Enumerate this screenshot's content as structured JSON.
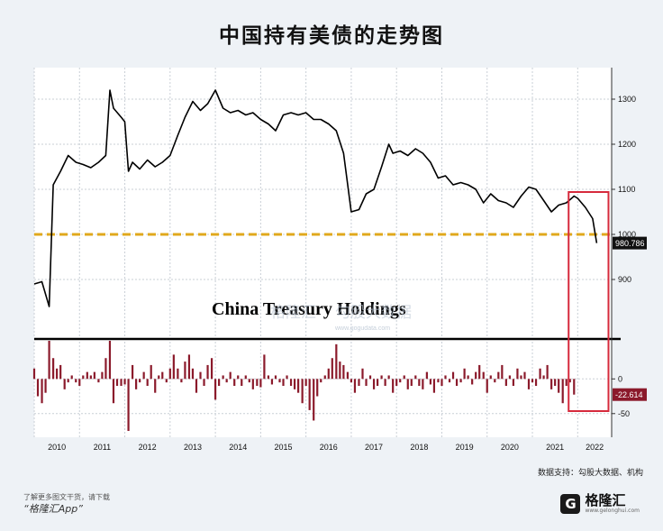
{
  "page": {
    "headline": "中国持有美债的走势图",
    "source_note": "数据支持：勾股大数据、机构",
    "promo_line": "了解更多图文干货，请下载",
    "promo_app": "“格隆汇App”",
    "brand_mark": "G",
    "brand_name": "格隆汇",
    "brand_url": "www.gelonghui.com"
  },
  "chart_data": {
    "type": "line",
    "title": "China Treasury Holdings",
    "watermark": "格隆汇",
    "watermark2": "勾股大数据",
    "watermark_url": "www.gogudata.com",
    "x_tick_labels": [
      "2010",
      "2011",
      "2012",
      "2013",
      "2014",
      "2015",
      "2016",
      "2017",
      "2018",
      "2019",
      "2020",
      "2021",
      "2022"
    ],
    "upper_panel": {
      "y_ticks": [
        900,
        1000,
        1100,
        1200,
        1300
      ],
      "ylim": [
        800,
        1330
      ],
      "reference_line": 1000,
      "last_value": 980.786,
      "last_label": "980.786",
      "series": [
        [
          2009.0,
          890
        ],
        [
          2009.17,
          895
        ],
        [
          2009.33,
          840
        ],
        [
          2009.42,
          1110
        ],
        [
          2009.58,
          1140
        ],
        [
          2009.75,
          1175
        ],
        [
          2009.92,
          1160
        ],
        [
          2010.08,
          1155
        ],
        [
          2010.25,
          1148
        ],
        [
          2010.42,
          1160
        ],
        [
          2010.58,
          1175
        ],
        [
          2010.67,
          1320
        ],
        [
          2010.75,
          1280
        ],
        [
          2010.92,
          1260
        ],
        [
          2011.0,
          1250
        ],
        [
          2011.08,
          1140
        ],
        [
          2011.17,
          1160
        ],
        [
          2011.33,
          1145
        ],
        [
          2011.5,
          1165
        ],
        [
          2011.67,
          1150
        ],
        [
          2011.83,
          1160
        ],
        [
          2012.0,
          1175
        ],
        [
          2012.17,
          1220
        ],
        [
          2012.33,
          1260
        ],
        [
          2012.5,
          1295
        ],
        [
          2012.67,
          1275
        ],
        [
          2012.83,
          1290
        ],
        [
          2013.0,
          1320
        ],
        [
          2013.17,
          1280
        ],
        [
          2013.33,
          1270
        ],
        [
          2013.5,
          1275
        ],
        [
          2013.67,
          1265
        ],
        [
          2013.83,
          1270
        ],
        [
          2014.0,
          1255
        ],
        [
          2014.17,
          1245
        ],
        [
          2014.33,
          1230
        ],
        [
          2014.5,
          1265
        ],
        [
          2014.67,
          1270
        ],
        [
          2014.83,
          1265
        ],
        [
          2015.0,
          1270
        ],
        [
          2015.17,
          1255
        ],
        [
          2015.33,
          1255
        ],
        [
          2015.5,
          1245
        ],
        [
          2015.67,
          1230
        ],
        [
          2015.83,
          1180
        ],
        [
          2016.0,
          1050
        ],
        [
          2016.17,
          1055
        ],
        [
          2016.33,
          1090
        ],
        [
          2016.5,
          1100
        ],
        [
          2016.67,
          1150
        ],
        [
          2016.83,
          1200
        ],
        [
          2016.92,
          1180
        ],
        [
          2017.08,
          1185
        ],
        [
          2017.25,
          1175
        ],
        [
          2017.42,
          1190
        ],
        [
          2017.58,
          1180
        ],
        [
          2017.75,
          1160
        ],
        [
          2017.92,
          1125
        ],
        [
          2018.08,
          1130
        ],
        [
          2018.25,
          1110
        ],
        [
          2018.42,
          1115
        ],
        [
          2018.58,
          1110
        ],
        [
          2018.75,
          1100
        ],
        [
          2018.92,
          1070
        ],
        [
          2019.08,
          1090
        ],
        [
          2019.25,
          1075
        ],
        [
          2019.42,
          1070
        ],
        [
          2019.58,
          1060
        ],
        [
          2019.75,
          1085
        ],
        [
          2019.92,
          1105
        ],
        [
          2020.08,
          1100
        ],
        [
          2020.25,
          1075
        ],
        [
          2020.42,
          1050
        ],
        [
          2020.58,
          1065
        ],
        [
          2020.75,
          1070
        ],
        [
          2020.92,
          1085
        ],
        [
          2021.0,
          1080
        ],
        [
          2021.17,
          1060
        ],
        [
          2021.33,
          1035
        ],
        [
          2021.42,
          980.786
        ]
      ]
    },
    "lower_panel": {
      "y_ticks": [
        0,
        -50
      ],
      "ylim": [
        -75,
        55
      ],
      "last_value": -22.614,
      "last_label": "-22.614",
      "values": [
        [
          2009.0,
          15
        ],
        [
          2009.08,
          -25
        ],
        [
          2009.17,
          -35
        ],
        [
          2009.25,
          -20
        ],
        [
          2009.33,
          55
        ],
        [
          2009.42,
          30
        ],
        [
          2009.5,
          15
        ],
        [
          2009.58,
          20
        ],
        [
          2009.67,
          -15
        ],
        [
          2009.75,
          -5
        ],
        [
          2009.83,
          5
        ],
        [
          2009.92,
          -5
        ],
        [
          2010.0,
          -10
        ],
        [
          2010.08,
          5
        ],
        [
          2010.17,
          10
        ],
        [
          2010.25,
          5
        ],
        [
          2010.33,
          10
        ],
        [
          2010.42,
          -5
        ],
        [
          2010.5,
          10
        ],
        [
          2010.58,
          30
        ],
        [
          2010.67,
          55
        ],
        [
          2010.75,
          -35
        ],
        [
          2010.83,
          -10
        ],
        [
          2010.92,
          -10
        ],
        [
          2011.0,
          -8
        ],
        [
          2011.08,
          -75
        ],
        [
          2011.17,
          20
        ],
        [
          2011.25,
          -15
        ],
        [
          2011.33,
          -5
        ],
        [
          2011.42,
          10
        ],
        [
          2011.5,
          -10
        ],
        [
          2011.58,
          20
        ],
        [
          2011.67,
          -20
        ],
        [
          2011.75,
          5
        ],
        [
          2011.83,
          10
        ],
        [
          2011.92,
          -5
        ],
        [
          2012.0,
          15
        ],
        [
          2012.08,
          35
        ],
        [
          2012.17,
          15
        ],
        [
          2012.25,
          -5
        ],
        [
          2012.33,
          25
        ],
        [
          2012.42,
          35
        ],
        [
          2012.5,
          15
        ],
        [
          2012.58,
          -20
        ],
        [
          2012.67,
          10
        ],
        [
          2012.75,
          -10
        ],
        [
          2012.83,
          20
        ],
        [
          2012.92,
          30
        ],
        [
          2013.0,
          -30
        ],
        [
          2013.08,
          -10
        ],
        [
          2013.17,
          5
        ],
        [
          2013.25,
          -5
        ],
        [
          2013.33,
          10
        ],
        [
          2013.42,
          -10
        ],
        [
          2013.5,
          5
        ],
        [
          2013.58,
          -10
        ],
        [
          2013.67,
          5
        ],
        [
          2013.75,
          -5
        ],
        [
          2013.83,
          -15
        ],
        [
          2013.92,
          -10
        ],
        [
          2014.0,
          -12
        ],
        [
          2014.08,
          35
        ],
        [
          2014.17,
          5
        ],
        [
          2014.25,
          -8
        ],
        [
          2014.33,
          5
        ],
        [
          2014.42,
          -5
        ],
        [
          2014.5,
          -10
        ],
        [
          2014.58,
          5
        ],
        [
          2014.67,
          -10
        ],
        [
          2014.75,
          -15
        ],
        [
          2014.83,
          -20
        ],
        [
          2014.92,
          -35
        ],
        [
          2015.0,
          -10
        ],
        [
          2015.08,
          -45
        ],
        [
          2015.17,
          -60
        ],
        [
          2015.25,
          -25
        ],
        [
          2015.33,
          -5
        ],
        [
          2015.42,
          5
        ],
        [
          2015.5,
          15
        ],
        [
          2015.58,
          30
        ],
        [
          2015.67,
          50
        ],
        [
          2015.75,
          25
        ],
        [
          2015.83,
          20
        ],
        [
          2015.92,
          10
        ],
        [
          2016.0,
          -5
        ],
        [
          2016.08,
          -20
        ],
        [
          2016.17,
          -10
        ],
        [
          2016.25,
          15
        ],
        [
          2016.33,
          -10
        ],
        [
          2016.42,
          5
        ],
        [
          2016.5,
          -15
        ],
        [
          2016.58,
          -10
        ],
        [
          2016.67,
          5
        ],
        [
          2016.75,
          -10
        ],
        [
          2016.83,
          5
        ],
        [
          2016.92,
          -20
        ],
        [
          2017.0,
          -10
        ],
        [
          2017.08,
          -5
        ],
        [
          2017.17,
          5
        ],
        [
          2017.25,
          -15
        ],
        [
          2017.33,
          -10
        ],
        [
          2017.42,
          5
        ],
        [
          2017.5,
          -10
        ],
        [
          2017.58,
          -15
        ],
        [
          2017.67,
          10
        ],
        [
          2017.75,
          -8
        ],
        [
          2017.83,
          -20
        ],
        [
          2017.92,
          -5
        ],
        [
          2018.0,
          -10
        ],
        [
          2018.08,
          5
        ],
        [
          2018.17,
          -5
        ],
        [
          2018.25,
          10
        ],
        [
          2018.33,
          -10
        ],
        [
          2018.42,
          -5
        ],
        [
          2018.5,
          15
        ],
        [
          2018.58,
          5
        ],
        [
          2018.67,
          -8
        ],
        [
          2018.75,
          10
        ],
        [
          2018.83,
          20
        ],
        [
          2018.92,
          10
        ],
        [
          2019.0,
          -20
        ],
        [
          2019.08,
          5
        ],
        [
          2019.17,
          -5
        ],
        [
          2019.25,
          10
        ],
        [
          2019.33,
          20
        ],
        [
          2019.42,
          -10
        ],
        [
          2019.5,
          5
        ],
        [
          2019.58,
          -10
        ],
        [
          2019.67,
          15
        ],
        [
          2019.75,
          5
        ],
        [
          2019.83,
          10
        ],
        [
          2019.92,
          -15
        ],
        [
          2020.0,
          -5
        ],
        [
          2020.08,
          -10
        ],
        [
          2020.17,
          15
        ],
        [
          2020.25,
          5
        ],
        [
          2020.33,
          20
        ],
        [
          2020.42,
          -15
        ],
        [
          2020.5,
          -10
        ],
        [
          2020.58,
          -20
        ],
        [
          2020.67,
          -35
        ],
        [
          2020.75,
          -10
        ],
        [
          2020.83,
          -5
        ],
        [
          2020.92,
          -22.614
        ]
      ]
    }
  }
}
